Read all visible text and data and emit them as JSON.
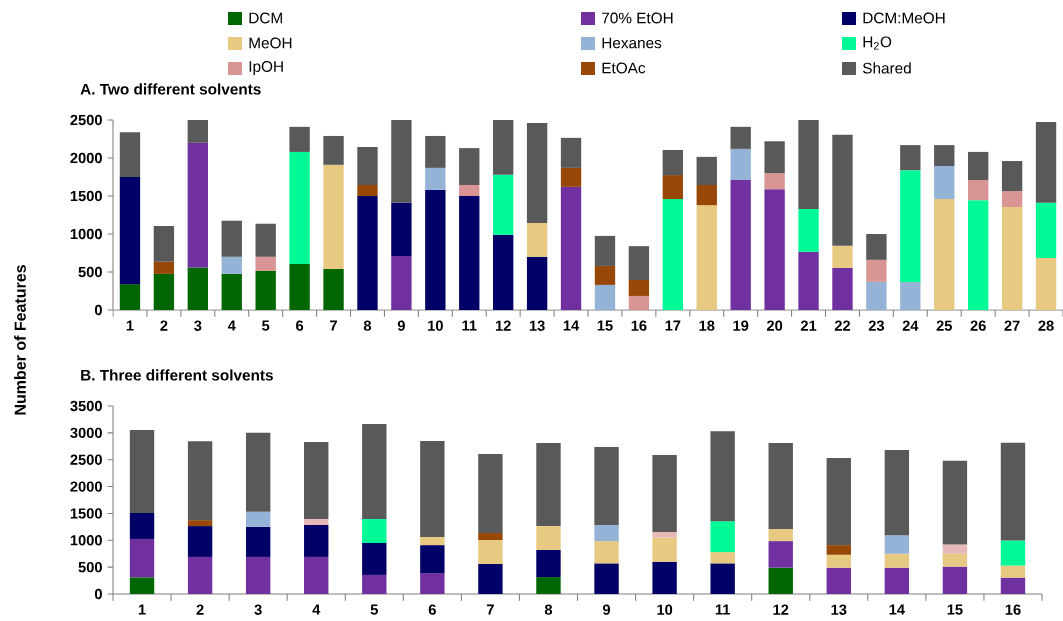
{
  "chart_data": [
    {
      "type": "bar",
      "stacked": true,
      "title": "A. Two different solvents",
      "ylabel": "Number of Features",
      "legend": "top right",
      "categories": [
        "1",
        "2",
        "3",
        "4",
        "5",
        "6",
        "7",
        "8",
        "9",
        "10",
        "11",
        "12",
        "13",
        "14",
        "15",
        "16",
        "17",
        "18",
        "19",
        "20",
        "21",
        "22",
        "23",
        "24",
        "25",
        "26",
        "27",
        "28"
      ],
      "ylim": [
        0,
        2500
      ],
      "yticks": [
        0,
        500,
        1000,
        1500,
        2000,
        2500
      ],
      "series": [
        {
          "name": "DCM",
          "color": "#006600",
          "values": [
            340,
            475,
            560,
            475,
            515,
            605,
            540,
            null,
            null,
            null,
            null,
            null,
            null,
            null,
            null,
            null,
            null,
            null,
            null,
            null,
            null,
            null,
            null,
            null,
            null,
            null,
            null,
            null
          ]
        },
        {
          "name": "70% EtOH",
          "color": "#7030a0",
          "values": [
            null,
            null,
            1640,
            null,
            null,
            null,
            null,
            null,
            710,
            null,
            null,
            null,
            null,
            1620,
            null,
            null,
            null,
            null,
            1710,
            1590,
            765,
            555,
            null,
            null,
            null,
            null,
            null,
            null
          ]
        },
        {
          "name": "DCM:MeOH",
          "color": "#000066",
          "values": [
            1410,
            null,
            null,
            null,
            null,
            null,
            null,
            1500,
            700,
            1580,
            1500,
            990,
            700,
            null,
            null,
            null,
            null,
            null,
            null,
            null,
            null,
            null,
            null,
            null,
            null,
            null,
            null,
            null
          ]
        },
        {
          "name": "MeOH",
          "color": "#e8c981",
          "values": [
            null,
            null,
            null,
            null,
            null,
            null,
            1370,
            null,
            null,
            null,
            null,
            null,
            445,
            null,
            null,
            null,
            null,
            1380,
            null,
            null,
            null,
            290,
            null,
            null,
            1460,
            null,
            1355,
            685
          ]
        },
        {
          "name": "Hexanes",
          "color": "#95b3d7",
          "values": [
            null,
            null,
            null,
            225,
            null,
            null,
            null,
            null,
            null,
            290,
            null,
            null,
            null,
            null,
            330,
            null,
            null,
            null,
            410,
            null,
            null,
            null,
            370,
            370,
            435,
            null,
            null,
            null
          ]
        },
        {
          "name": "H$_{2}$O",
          "color": "#00fa96",
          "values": [
            null,
            null,
            null,
            null,
            null,
            1475,
            null,
            null,
            null,
            null,
            null,
            790,
            null,
            null,
            null,
            null,
            1460,
            null,
            null,
            null,
            565,
            null,
            null,
            1470,
            null,
            1445,
            null,
            725
          ]
        },
        {
          "name": "IpOH",
          "color": "#d99594",
          "values": [
            null,
            null,
            null,
            null,
            185,
            null,
            null,
            null,
            null,
            null,
            145,
            null,
            null,
            null,
            null,
            185,
            null,
            null,
            null,
            210,
            null,
            null,
            290,
            null,
            null,
            265,
            210,
            null
          ]
        },
        {
          "name": "EtOAc",
          "color": "#974806",
          "values": [
            null,
            160,
            null,
            null,
            null,
            null,
            null,
            145,
            null,
            null,
            null,
            null,
            null,
            250,
            250,
            210,
            315,
            265,
            null,
            null,
            null,
            null,
            null,
            null,
            null,
            null,
            null,
            null
          ]
        },
        {
          "name": "Shared",
          "color": "#595959",
          "values": [
            590,
            470,
            300,
            475,
            435,
            330,
            380,
            500,
            1090,
            420,
            485,
            720,
            1315,
            395,
            395,
            445,
            330,
            370,
            290,
            420,
            1170,
            1460,
            340,
            330,
            275,
            370,
            395,
            1065
          ]
        }
      ]
    },
    {
      "type": "bar",
      "stacked": true,
      "title": "B. Three different solvents",
      "categories": [
        "1",
        "2",
        "3",
        "4",
        "5",
        "6",
        "7",
        "8",
        "9",
        "10",
        "11",
        "12",
        "13",
        "14",
        "15",
        "16"
      ],
      "ylim": [
        0,
        3500
      ],
      "yticks": [
        0,
        500,
        1000,
        1500,
        2000,
        2500,
        3000,
        3500
      ],
      "series": [
        {
          "color": "#006600",
          "values": [
            310,
            null,
            null,
            null,
            null,
            null,
            null,
            315,
            null,
            null,
            null,
            490,
            null,
            null,
            null,
            null
          ]
        },
        {
          "color": "#7030a0",
          "values": [
            715,
            690,
            690,
            690,
            355,
            390,
            null,
            null,
            null,
            null,
            null,
            495,
            490,
            490,
            510,
            305
          ]
        },
        {
          "color": "#000066",
          "values": [
            485,
            575,
            560,
            595,
            595,
            520,
            560,
            505,
            570,
            600,
            570,
            null,
            null,
            null,
            null,
            null
          ]
        },
        {
          "color": "#e8c981",
          "values": [
            null,
            null,
            null,
            null,
            null,
            150,
            445,
            445,
            415,
            450,
            210,
            225,
            240,
            260,
            240,
            225
          ]
        },
        {
          "color": "#95b3d7",
          "values": [
            null,
            null,
            280,
            null,
            null,
            null,
            null,
            null,
            300,
            null,
            null,
            null,
            null,
            345,
            null,
            null
          ]
        },
        {
          "color": "#00fa96",
          "values": [
            null,
            null,
            null,
            null,
            445,
            null,
            null,
            null,
            null,
            null,
            575,
            null,
            null,
            null,
            null,
            465
          ]
        },
        {
          "color": "#e6b9b8",
          "values": [
            null,
            null,
            null,
            110,
            null,
            null,
            null,
            null,
            null,
            105,
            null,
            null,
            null,
            null,
            170,
            null
          ]
        },
        {
          "color": "#974806",
          "values": [
            null,
            110,
            null,
            null,
            null,
            null,
            130,
            null,
            null,
            null,
            null,
            null,
            180,
            null,
            null,
            null
          ]
        },
        {
          "color": "#595959",
          "values": [
            1545,
            1470,
            1470,
            1435,
            1770,
            1790,
            1470,
            1545,
            1450,
            1435,
            1675,
            1600,
            1620,
            1585,
            1560,
            1820
          ]
        }
      ]
    }
  ]
}
